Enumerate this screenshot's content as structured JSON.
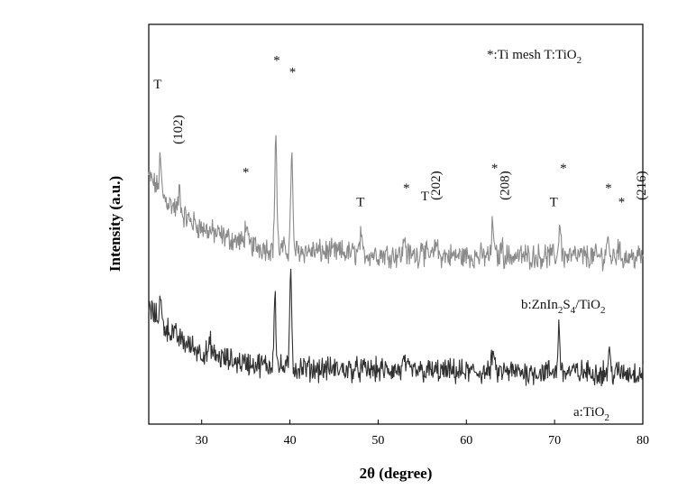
{
  "chart_data": {
    "type": "line",
    "title": "",
    "xlabel": "2θ (degree)",
    "ylabel": "Intensity (a.u.)",
    "xlim": [
      24,
      80
    ],
    "xticks": [
      "30",
      "40",
      "50",
      "60",
      "70",
      "80"
    ],
    "ylim": [
      0,
      1
    ],
    "yticks_shown": false,
    "grid": false,
    "legend": {
      "placement": "top-right",
      "text": "*:Ti mesh   T:TiO",
      "subscript": "2"
    },
    "series": [
      {
        "name": "b:ZnIn2S4/TiO2",
        "color": "#8a8a8a",
        "baseline": [
          [
            24,
            0.62
          ],
          [
            26,
            0.56
          ],
          [
            28,
            0.52
          ],
          [
            30,
            0.49
          ],
          [
            33,
            0.465
          ],
          [
            36,
            0.445
          ],
          [
            40,
            0.435
          ],
          [
            50,
            0.425
          ],
          [
            60,
            0.42
          ],
          [
            70,
            0.42
          ],
          [
            80,
            0.418
          ]
        ],
        "peaks": [
          [
            25.3,
            0.08
          ],
          [
            27.5,
            0.06
          ],
          [
            35.0,
            0.05
          ],
          [
            38.4,
            0.29
          ],
          [
            40.2,
            0.25
          ],
          [
            48.0,
            0.04
          ],
          [
            53.0,
            0.05
          ],
          [
            55.0,
            0.04
          ],
          [
            56.6,
            0.04
          ],
          [
            63.0,
            0.09
          ],
          [
            64.0,
            0.03
          ],
          [
            70.6,
            0.09
          ],
          [
            76.0,
            0.05
          ],
          [
            77.2,
            0.03
          ]
        ]
      },
      {
        "name": "a:TiO2",
        "color": "#303030",
        "baseline": [
          [
            24,
            0.29
          ],
          [
            26,
            0.24
          ],
          [
            28,
            0.205
          ],
          [
            30,
            0.18
          ],
          [
            33,
            0.16
          ],
          [
            36,
            0.15
          ],
          [
            40,
            0.14
          ],
          [
            50,
            0.135
          ],
          [
            60,
            0.13
          ],
          [
            70,
            0.13
          ],
          [
            80,
            0.128
          ]
        ],
        "peaks": [
          [
            25.3,
            0.06
          ],
          [
            31.0,
            0.03
          ],
          [
            38.3,
            0.19
          ],
          [
            40.1,
            0.25
          ],
          [
            53.0,
            0.03
          ],
          [
            63.0,
            0.06
          ],
          [
            70.5,
            0.12
          ],
          [
            76.2,
            0.05
          ]
        ]
      }
    ],
    "series_labels": {
      "b": {
        "pre": "b:ZnIn",
        "s1": "2",
        "mid": "S",
        "s2": "4",
        "post": "/TiO",
        "s3": "2"
      },
      "a": {
        "pre": "a:TiO",
        "s1": "2"
      }
    },
    "annotations": [
      {
        "text": "T",
        "x": 25.0,
        "y": 0.84,
        "rot": 0
      },
      {
        "text": "(102)",
        "x": 27.8,
        "y": 0.7,
        "rot": -90
      },
      {
        "text": "*",
        "x": 35.0,
        "y": 0.62,
        "rot": 0
      },
      {
        "text": "*",
        "x": 38.5,
        "y": 0.9,
        "rot": 0
      },
      {
        "text": "*",
        "x": 40.3,
        "y": 0.87,
        "rot": 0
      },
      {
        "text": "T",
        "x": 48.0,
        "y": 0.545,
        "rot": 0
      },
      {
        "text": "*",
        "x": 53.2,
        "y": 0.58,
        "rot": 0
      },
      {
        "text": "T",
        "x": 55.3,
        "y": 0.56,
        "rot": 0
      },
      {
        "text": "(202)",
        "x": 57.0,
        "y": 0.56,
        "rot": -90
      },
      {
        "text": "*",
        "x": 63.2,
        "y": 0.63,
        "rot": 0
      },
      {
        "text": "(208)",
        "x": 64.8,
        "y": 0.56,
        "rot": -90
      },
      {
        "text": "T",
        "x": 69.9,
        "y": 0.545,
        "rot": 0
      },
      {
        "text": "*",
        "x": 71.0,
        "y": 0.63,
        "rot": 0
      },
      {
        "text": "*",
        "x": 76.1,
        "y": 0.58,
        "rot": 0
      },
      {
        "text": "*",
        "x": 77.6,
        "y": 0.545,
        "rot": 0
      },
      {
        "text": "(216)",
        "x": 80.3,
        "y": 0.56,
        "rot": -90
      }
    ]
  }
}
